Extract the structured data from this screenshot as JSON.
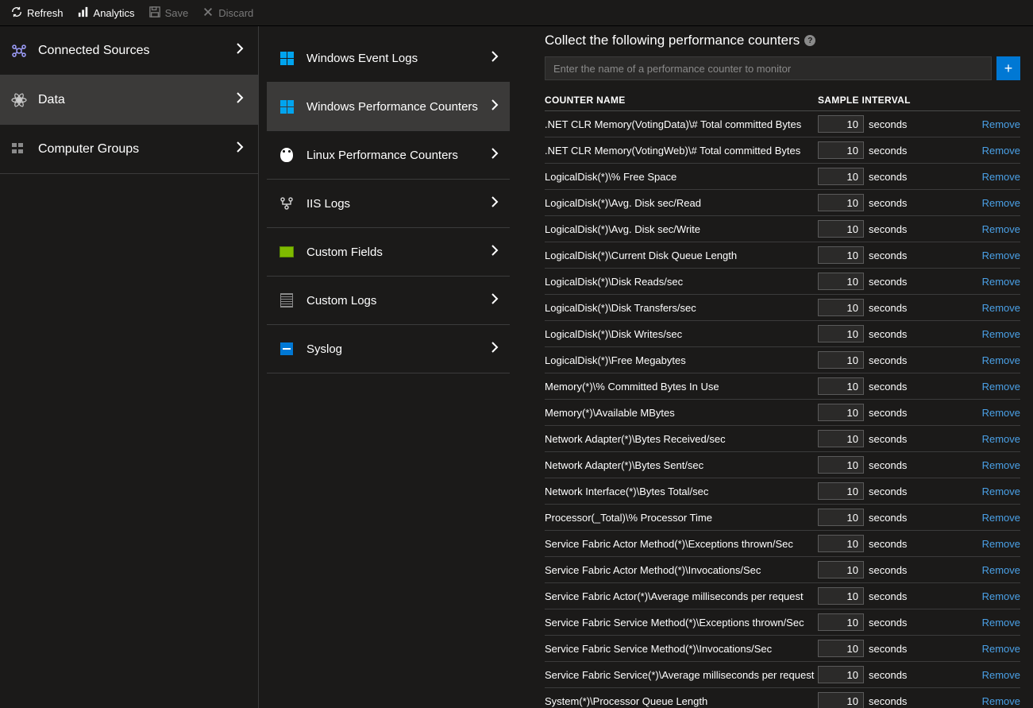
{
  "toolbar": {
    "refresh": "Refresh",
    "analytics": "Analytics",
    "save": "Save",
    "discard": "Discard"
  },
  "nav": {
    "connected_sources": "Connected Sources",
    "data": "Data",
    "computer_groups": "Computer Groups"
  },
  "sub": {
    "win_event": "Windows Event Logs",
    "win_perf": "Windows Performance Counters",
    "linux_perf": "Linux Performance Counters",
    "iis": "IIS Logs",
    "custom_fields": "Custom Fields",
    "custom_logs": "Custom Logs",
    "syslog": "Syslog"
  },
  "detail": {
    "title": "Collect the following performance counters",
    "placeholder": "Enter the name of a performance counter to monitor",
    "header_name": "COUNTER NAME",
    "header_interval": "SAMPLE INTERVAL",
    "seconds": "seconds",
    "remove": "Remove",
    "counters": [
      {
        "name": ".NET CLR Memory(VotingData)\\# Total committed Bytes",
        "interval": "10"
      },
      {
        "name": ".NET CLR Memory(VotingWeb)\\# Total committed Bytes",
        "interval": "10"
      },
      {
        "name": "LogicalDisk(*)\\% Free Space",
        "interval": "10"
      },
      {
        "name": "LogicalDisk(*)\\Avg. Disk sec/Read",
        "interval": "10"
      },
      {
        "name": "LogicalDisk(*)\\Avg. Disk sec/Write",
        "interval": "10"
      },
      {
        "name": "LogicalDisk(*)\\Current Disk Queue Length",
        "interval": "10"
      },
      {
        "name": "LogicalDisk(*)\\Disk Reads/sec",
        "interval": "10"
      },
      {
        "name": "LogicalDisk(*)\\Disk Transfers/sec",
        "interval": "10"
      },
      {
        "name": "LogicalDisk(*)\\Disk Writes/sec",
        "interval": "10"
      },
      {
        "name": "LogicalDisk(*)\\Free Megabytes",
        "interval": "10"
      },
      {
        "name": "Memory(*)\\% Committed Bytes In Use",
        "interval": "10"
      },
      {
        "name": "Memory(*)\\Available MBytes",
        "interval": "10"
      },
      {
        "name": "Network Adapter(*)\\Bytes Received/sec",
        "interval": "10"
      },
      {
        "name": "Network Adapter(*)\\Bytes Sent/sec",
        "interval": "10"
      },
      {
        "name": "Network Interface(*)\\Bytes Total/sec",
        "interval": "10"
      },
      {
        "name": "Processor(_Total)\\% Processor Time",
        "interval": "10"
      },
      {
        "name": "Service Fabric Actor Method(*)\\Exceptions thrown/Sec",
        "interval": "10"
      },
      {
        "name": "Service Fabric Actor Method(*)\\Invocations/Sec",
        "interval": "10"
      },
      {
        "name": "Service Fabric Actor(*)\\Average milliseconds per request",
        "interval": "10"
      },
      {
        "name": "Service Fabric Service Method(*)\\Exceptions thrown/Sec",
        "interval": "10"
      },
      {
        "name": "Service Fabric Service Method(*)\\Invocations/Sec",
        "interval": "10"
      },
      {
        "name": "Service Fabric Service(*)\\Average milliseconds per request",
        "interval": "10"
      },
      {
        "name": "System(*)\\Processor Queue Length",
        "interval": "10"
      }
    ]
  }
}
